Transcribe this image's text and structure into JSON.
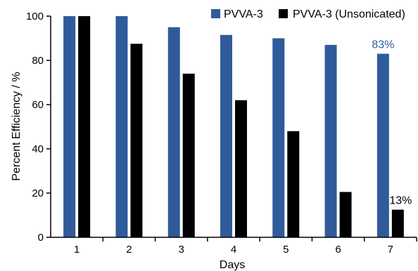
{
  "chart_data": {
    "type": "bar",
    "title": "",
    "xlabel": "Days",
    "ylabel": "Percent Efficiency / %",
    "categories": [
      "1",
      "2",
      "3",
      "4",
      "5",
      "6",
      "7"
    ],
    "ylim": [
      0,
      100
    ],
    "yticks": [
      0,
      20,
      40,
      60,
      80,
      100
    ],
    "yticks_labels": [
      "0",
      "20",
      "40",
      "60",
      "80",
      "100"
    ],
    "grid": false,
    "legend_position": "top-right",
    "series": [
      {
        "name": "PVVA-3",
        "color": "#2f5b9a",
        "values": [
          100,
          100,
          95,
          91.5,
          90,
          87,
          83
        ]
      },
      {
        "name": "PVVA-3 (Unsonicated)",
        "color": "#000000",
        "values": [
          100,
          87.5,
          74,
          62,
          48,
          20.5,
          12.5
        ]
      }
    ],
    "annotations": [
      {
        "text": "83%",
        "category": "7",
        "series": 0,
        "color": "#2f5b9a"
      },
      {
        "text": "13%",
        "category": "7",
        "series": 1,
        "color": "#000000"
      }
    ]
  }
}
